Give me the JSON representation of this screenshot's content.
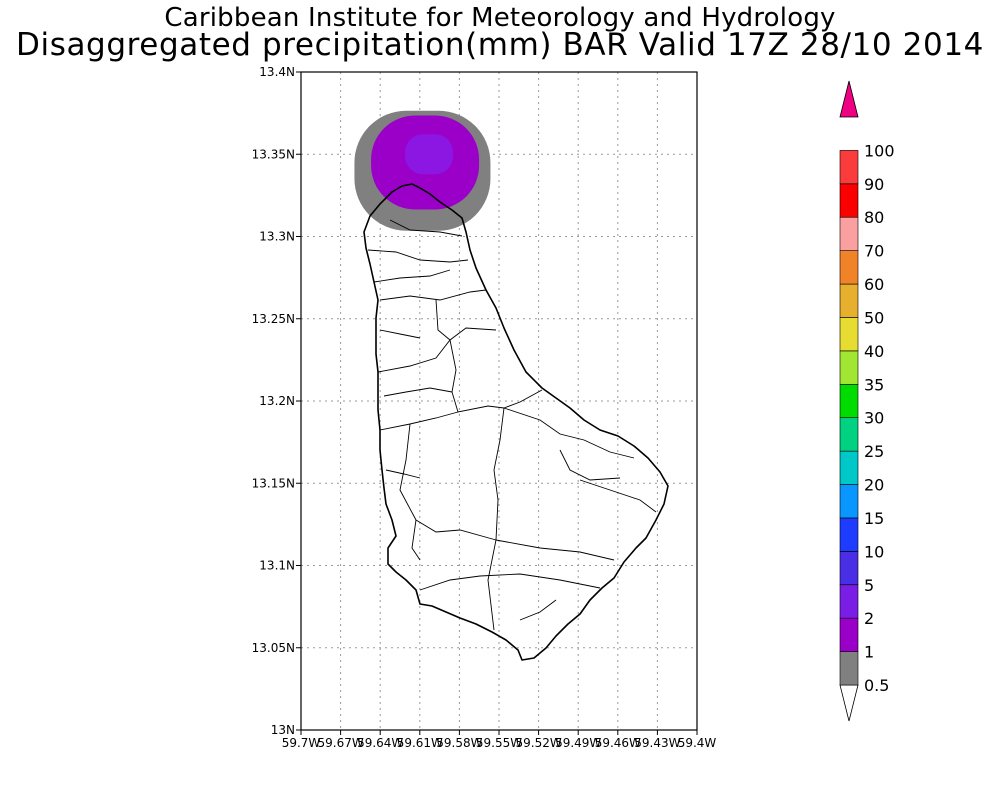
{
  "title_line1": "Caribbean Institute for Meteorology and Hydrology",
  "title_line2": "Disaggregated precipitation(mm) BAR Valid 17Z 28/10 2014",
  "map": {
    "lat_range": [
      13.0,
      13.4
    ],
    "lon_range": [
      -59.7,
      -59.4
    ],
    "grid": true,
    "lat_ticks": [
      {
        "value": 13.4,
        "label": "13.4N"
      },
      {
        "value": 13.35,
        "label": "13.35N"
      },
      {
        "value": 13.3,
        "label": "13.3N"
      },
      {
        "value": 13.25,
        "label": "13.25N"
      },
      {
        "value": 13.2,
        "label": "13.2N"
      },
      {
        "value": 13.15,
        "label": "13.15N"
      },
      {
        "value": 13.1,
        "label": "13.1N"
      },
      {
        "value": 13.05,
        "label": "13.05N"
      },
      {
        "value": 13.0,
        "label": "13N"
      }
    ],
    "lon_ticks": [
      {
        "value": -59.7,
        "label": "59.7W"
      },
      {
        "value": -59.67,
        "label": "59.67W"
      },
      {
        "value": -59.64,
        "label": "59.64W"
      },
      {
        "value": -59.61,
        "label": "59.61W"
      },
      {
        "value": -59.58,
        "label": "59.58W"
      },
      {
        "value": -59.55,
        "label": "59.55W"
      },
      {
        "value": -59.52,
        "label": "59.52W"
      },
      {
        "value": -59.49,
        "label": "59.49W"
      },
      {
        "value": -59.46,
        "label": "59.46W"
      },
      {
        "value": -59.43,
        "label": "59.43W"
      },
      {
        "value": -59.4,
        "label": "59.4W"
      }
    ],
    "precip_areas": [
      {
        "level": "0.5-1",
        "color": "#808080",
        "center_lon": -59.608,
        "center_lat": 13.34
      },
      {
        "level": "1-2",
        "color": "#9a00c8",
        "center_lon": -59.606,
        "center_lat": 13.345
      },
      {
        "level": "2-5",
        "color": "#8a1be6",
        "center_lon": -59.603,
        "center_lat": 13.35
      }
    ]
  },
  "colorbar": {
    "levels": [
      {
        "label": "0.5",
        "color": "#ffffff"
      },
      {
        "label": "1",
        "color": "#808080"
      },
      {
        "label": "2",
        "color": "#9a00c8"
      },
      {
        "label": "5",
        "color": "#7a1ee6"
      },
      {
        "label": "10",
        "color": "#4a2ee6"
      },
      {
        "label": "15",
        "color": "#1e3cff"
      },
      {
        "label": "20",
        "color": "#0a96ff"
      },
      {
        "label": "25",
        "color": "#00c8c8"
      },
      {
        "label": "30",
        "color": "#00d282"
      },
      {
        "label": "35",
        "color": "#00dc00"
      },
      {
        "label": "40",
        "color": "#a0e632"
      },
      {
        "label": "50",
        "color": "#e6dc32"
      },
      {
        "label": "60",
        "color": "#e6af2d"
      },
      {
        "label": "70",
        "color": "#f08228"
      },
      {
        "label": "80",
        "color": "#faa0a0"
      },
      {
        "label": "90",
        "color": "#fa0000"
      },
      {
        "label": "100",
        "color": "#fa3c3c"
      }
    ],
    "top_arrow_color": "#f00082",
    "bottom_arrow_color": "#ffffff"
  }
}
